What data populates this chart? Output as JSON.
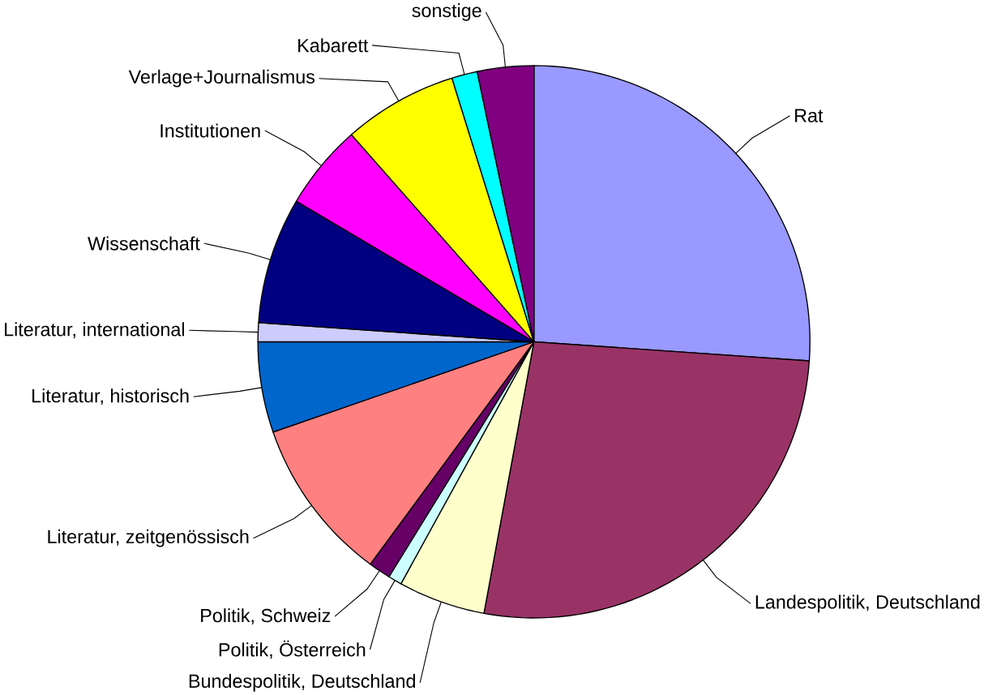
{
  "chart_data": {
    "type": "pie",
    "categories": [
      "Rat",
      "Landespolitik, Deutschland",
      "Bundespolitik, Deutschland",
      "Politik, Österreich",
      "Politik, Schweiz",
      "Literatur, zeitgenössisch",
      "Literatur, historisch",
      "Literatur, international",
      "Wissenschaft",
      "Institutionen",
      "Verlage+Journalismus",
      "Kabarett",
      "sonstige"
    ],
    "values": [
      26.1,
      26.8,
      5.1,
      0.8,
      1.3,
      9.6,
      5.3,
      1.1,
      7.4,
      5.0,
      6.7,
      1.5,
      3.3
    ],
    "colors": [
      "#9999ff",
      "#993366",
      "#ffffcc",
      "#ccffff",
      "#660066",
      "#ff8080",
      "#0066cc",
      "#ccccff",
      "#000080",
      "#ff00ff",
      "#ffff00",
      "#00ffff",
      "#800080"
    ]
  }
}
